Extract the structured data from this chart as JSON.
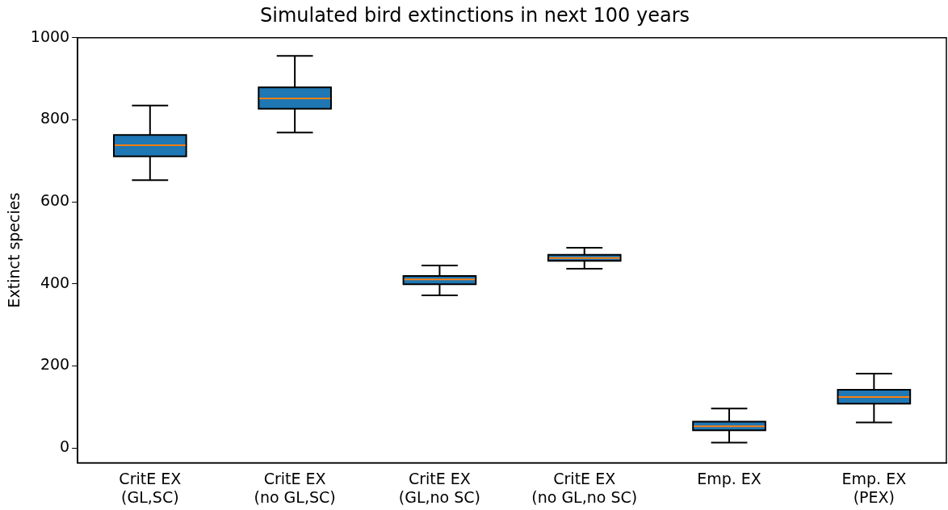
{
  "chart_data": {
    "type": "box",
    "title": "Simulated bird extinctions in next 100 years",
    "ylabel": "Extinct species",
    "categories": [
      "CritE EX\n(GL,SC)",
      "CritE EX\n(no GL,SC)",
      "CritE EX\n(GL,no SC)",
      "CritE EX\n(no GL,no SC)",
      "Emp. EX",
      "Emp. EX\n(PEX)"
    ],
    "boxes": [
      {
        "low": 653,
        "q1": 711,
        "median": 738,
        "q3": 763,
        "high": 835
      },
      {
        "low": 769,
        "q1": 827,
        "median": 852,
        "q3": 879,
        "high": 956
      },
      {
        "low": 372,
        "q1": 399,
        "median": 411,
        "q3": 419,
        "high": 445
      },
      {
        "low": 437,
        "q1": 456,
        "median": 463,
        "q3": 471,
        "high": 488
      },
      {
        "low": 13,
        "q1": 43,
        "median": 53,
        "q3": 64,
        "high": 96
      },
      {
        "low": 62,
        "q1": 108,
        "median": 124,
        "q3": 142,
        "high": 181
      }
    ],
    "color": "#1f77b4",
    "ylim": [
      -36,
      1000
    ],
    "yticks": [
      0,
      200,
      400,
      600,
      800,
      1000
    ],
    "grid": false,
    "legend": false
  }
}
